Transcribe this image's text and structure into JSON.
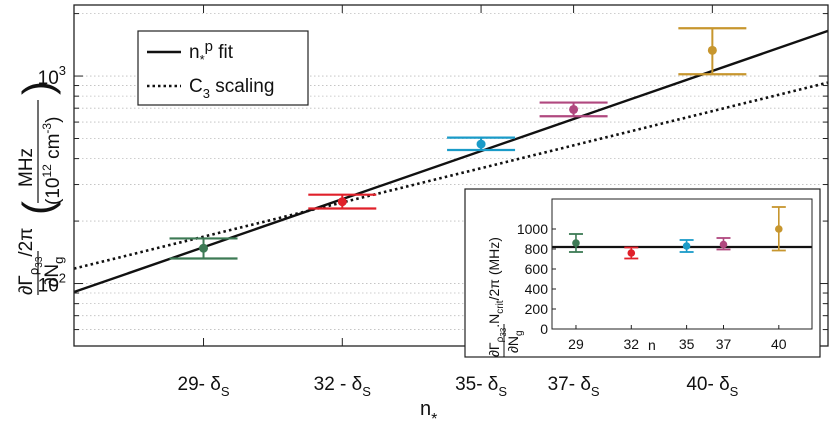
{
  "chart_data": [
    {
      "type": "scatter",
      "xlabel": "n",
      "xlabel_sub": "*",
      "ylabel": "∂Γρ33/2π / ∂Ng (MHz / 10^12 cm^-3)",
      "yscale": "log",
      "xlim": [
        26.2,
        42.5
      ],
      "ylim": [
        50,
        2200
      ],
      "grid": "y-minor-dotted",
      "x_tick_labels": [
        {
          "x": 29,
          "base": "29",
          "sep": "- ",
          "sym": "δ",
          "sub": "S"
        },
        {
          "x": 32,
          "base": "32",
          "sep": " - ",
          "sym": "δ",
          "sub": "S"
        },
        {
          "x": 35,
          "base": "35",
          "sep": "- ",
          "sym": "δ",
          "sub": "S"
        },
        {
          "x": 37,
          "base": "37",
          "sep": "- ",
          "sym": "δ",
          "sub": "S"
        },
        {
          "x": 40,
          "base": "40",
          "sep": "- ",
          "sym": "δ",
          "sub": "S"
        }
      ],
      "y_tick_labels": [
        {
          "value": 100,
          "base": "10",
          "exp": "2"
        },
        {
          "value": 1000,
          "base": "10",
          "exp": "3"
        }
      ],
      "legend": {
        "position": "top-left",
        "entries": [
          {
            "style": "solid",
            "label_main": "n",
            "label_sub": "*",
            "label_sup": "p",
            "label_tail": " fit"
          },
          {
            "style": "dotted",
            "label_main": "C",
            "label_sub": "3",
            "label_sup": "",
            "label_tail": " scaling"
          }
        ]
      },
      "points": [
        {
          "x": 29,
          "y": 148,
          "ylow": 132,
          "yhigh": 165,
          "color": "#3d7a55"
        },
        {
          "x": 32,
          "y": 248,
          "ylow": 230,
          "yhigh": 268,
          "color": "#e0202a"
        },
        {
          "x": 35,
          "y": 470,
          "ylow": 440,
          "yhigh": 505,
          "color": "#1a9bc8"
        },
        {
          "x": 37,
          "y": 690,
          "ylow": 640,
          "yhigh": 745,
          "color": "#b0487f"
        },
        {
          "x": 40,
          "y": 1330,
          "ylow": 1020,
          "yhigh": 1700,
          "color": "#c7962e"
        }
      ],
      "fit_line": {
        "x": [
          26.2,
          42.5
        ],
        "y": [
          91,
          1650
        ],
        "style": "solid"
      },
      "c3_line": {
        "x": [
          26.2,
          42.5
        ],
        "y": [
          118,
          930
        ],
        "style": "dotted"
      }
    },
    {
      "type": "scatter",
      "inset": true,
      "xlabel": "n",
      "ylabel": "∂Γρ33/∂Ng · Ncrit/2π (MHz)",
      "xlim": [
        27.7,
        41.8
      ],
      "ylim": [
        0,
        1300
      ],
      "x_tick_labels": [
        "29",
        "32",
        "35",
        "37",
        "40"
      ],
      "x_ticks": [
        29,
        32,
        35,
        37,
        40
      ],
      "y_ticks": [
        0,
        200,
        400,
        600,
        800,
        1000
      ],
      "y_tick_labels": [
        "0",
        "200",
        "400",
        "600",
        "800",
        "1000"
      ],
      "points": [
        {
          "x": 29,
          "y": 860,
          "ylow": 770,
          "yhigh": 950,
          "color": "#3d7a55"
        },
        {
          "x": 32,
          "y": 760,
          "ylow": 705,
          "yhigh": 815,
          "color": "#e0202a"
        },
        {
          "x": 35,
          "y": 830,
          "ylow": 770,
          "yhigh": 890,
          "color": "#1a9bc8"
        },
        {
          "x": 37,
          "y": 845,
          "ylow": 795,
          "yhigh": 910,
          "color": "#b0487f"
        },
        {
          "x": 40,
          "y": 1000,
          "ylow": 785,
          "yhigh": 1220,
          "color": "#c7962e"
        }
      ],
      "mean_line": {
        "y": 820
      }
    }
  ]
}
